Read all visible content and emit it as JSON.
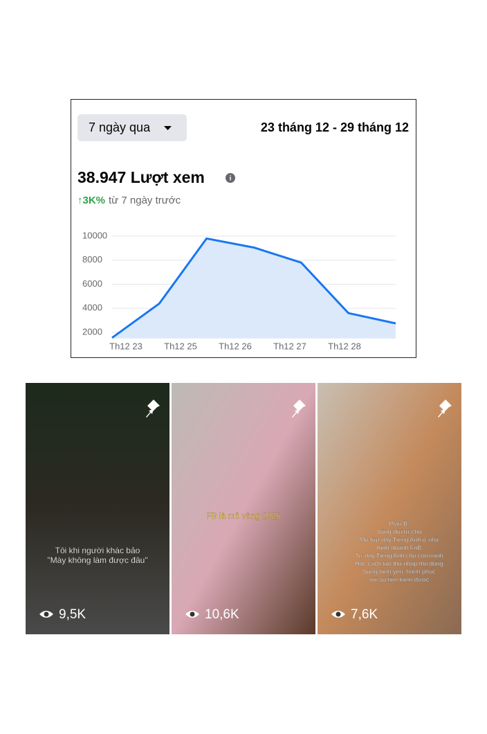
{
  "header": {
    "range_button": "7 ngày qua",
    "date_range": "23 tháng 12 - 29 tháng 12",
    "total": "38.947 Lượt xem",
    "change": "↑3K%",
    "change_note": "từ 7 ngày trước"
  },
  "chart_data": {
    "type": "area",
    "x_labels": [
      "Th12 23",
      "Th12 25",
      "Th12 26",
      "Th12 27",
      "Th12 28"
    ],
    "values": [
      1550,
      4400,
      9800,
      9050,
      7800,
      3600,
      2750
    ],
    "color": "#1877f2",
    "fill": "#dce9fb",
    "ylim": [
      1500,
      10400
    ],
    "yticks": [
      2000,
      4000,
      6000,
      8000,
      10000
    ],
    "grid": true
  },
  "posts": [
    {
      "caption": [
        "Tôi khi người khác bảo",
        "\"Mày không làm được đâu\""
      ],
      "views": "9,5K"
    },
    {
      "caption": [
        "FB là mỏ vàng 2026"
      ],
      "views": "10,6K"
    },
    {
      "caption": [
        "Plan B:",
        "Sống đời tự chủ",
        "Mở lớp dạy Tiếng Anh ở nhà",
        "Kinh doanh FnB",
        "Tự dạy Tiếng Anh cho con mình",
        "Học cách tạo thu nhập thụ động",
        "Sống bình yên, hạnh phúc",
        "với số tiền kiếm được"
      ],
      "views": "7,6K"
    }
  ]
}
